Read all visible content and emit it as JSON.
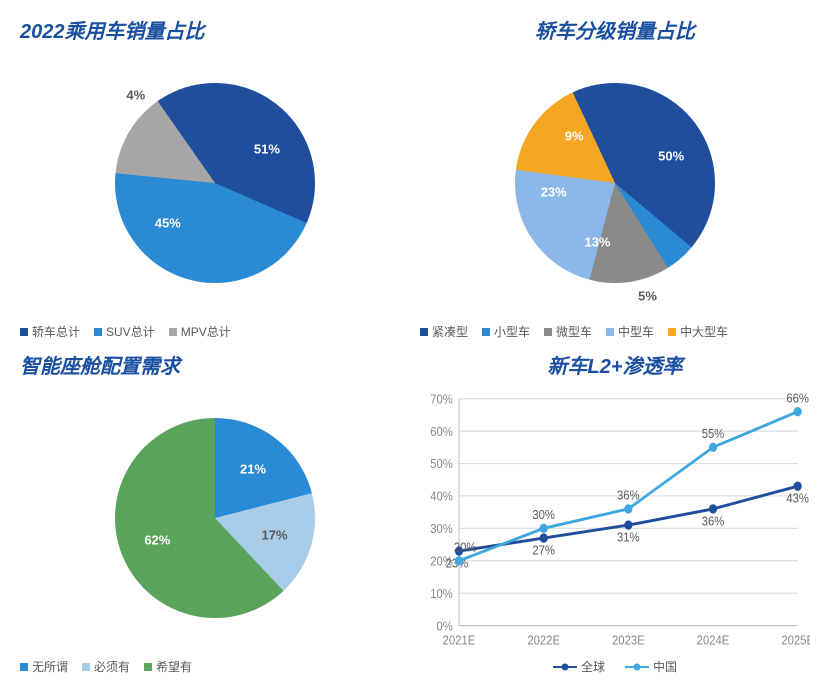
{
  "panel1": {
    "title": "2022乘用车销量占比",
    "type": "pie",
    "slices": [
      {
        "label": "轿车总计",
        "value": 51,
        "color": "#1f4e9c",
        "textColor": "#ffffff"
      },
      {
        "label": "SUV总计",
        "value": 45,
        "color": "#2a8ad4",
        "textColor": "#ffffff"
      },
      {
        "label": "MPV总计",
        "value": 4,
        "color": "#a6a6a6",
        "textColor": "#595959",
        "outside": true
      }
    ],
    "legend_marker": "square",
    "title_fontsize": 20,
    "title_color": "#1a4fa0",
    "startAngle": -35
  },
  "panel2": {
    "title": "轿车分级销量占比",
    "type": "pie",
    "slices": [
      {
        "label": "紧凑型",
        "value": 50,
        "color": "#1f4e9c",
        "textColor": "#ffffff"
      },
      {
        "label": "小型车",
        "value": 5,
        "color": "#2a8ad4",
        "textColor": "#595959",
        "outside": true
      },
      {
        "label": "微型车",
        "value": 13,
        "color": "#8a8a8a",
        "textColor": "#ffffff"
      },
      {
        "label": "中型车",
        "value": 23,
        "color": "#8bb8e8",
        "textColor": "#ffffff"
      },
      {
        "label": "中大型车",
        "value": 9,
        "color": "#f5a623",
        "textColor": "#ffffff"
      }
    ],
    "legend_marker": "square",
    "title_fontsize": 20,
    "title_color": "#1a4fa0",
    "startAngle": -25
  },
  "panel3": {
    "title": "智能座舱配置需求",
    "type": "pie",
    "slices": [
      {
        "label": "无所谓",
        "value": 21,
        "color": "#2a8ad4",
        "textColor": "#ffffff"
      },
      {
        "label": "必须有",
        "value": 17,
        "color": "#a9cce8",
        "textColor": "#595959"
      },
      {
        "label": "希望有",
        "value": 62,
        "color": "#5aa35a",
        "textColor": "#ffffff"
      }
    ],
    "legend_marker": "square",
    "title_fontsize": 20,
    "title_color": "#1a4fa0",
    "startAngle": 0
  },
  "panel4": {
    "title": "新车L2+渗透率",
    "type": "line",
    "x_labels": [
      "2021E",
      "2022E",
      "2023E",
      "2024E",
      "2025E"
    ],
    "y_min": 0,
    "y_max": 70,
    "y_tick_step": 10,
    "y_suffix": "%",
    "grid_color": "#dcdcdc",
    "axis_color": "#bfbfbf",
    "label_fontsize": 11,
    "series": [
      {
        "name": "全球",
        "color": "#1f4e9c",
        "values": [
          23,
          27,
          31,
          36,
          43
        ],
        "marker": "circle",
        "line_width": 2.5,
        "label_offset": "below"
      },
      {
        "name": "中国",
        "color": "#3fa7e0",
        "values": [
          20,
          30,
          36,
          55,
          66
        ],
        "marker": "circle",
        "line_width": 2.5,
        "label_offset": "above"
      }
    ],
    "title_fontsize": 20,
    "title_color": "#1a4fa0"
  }
}
